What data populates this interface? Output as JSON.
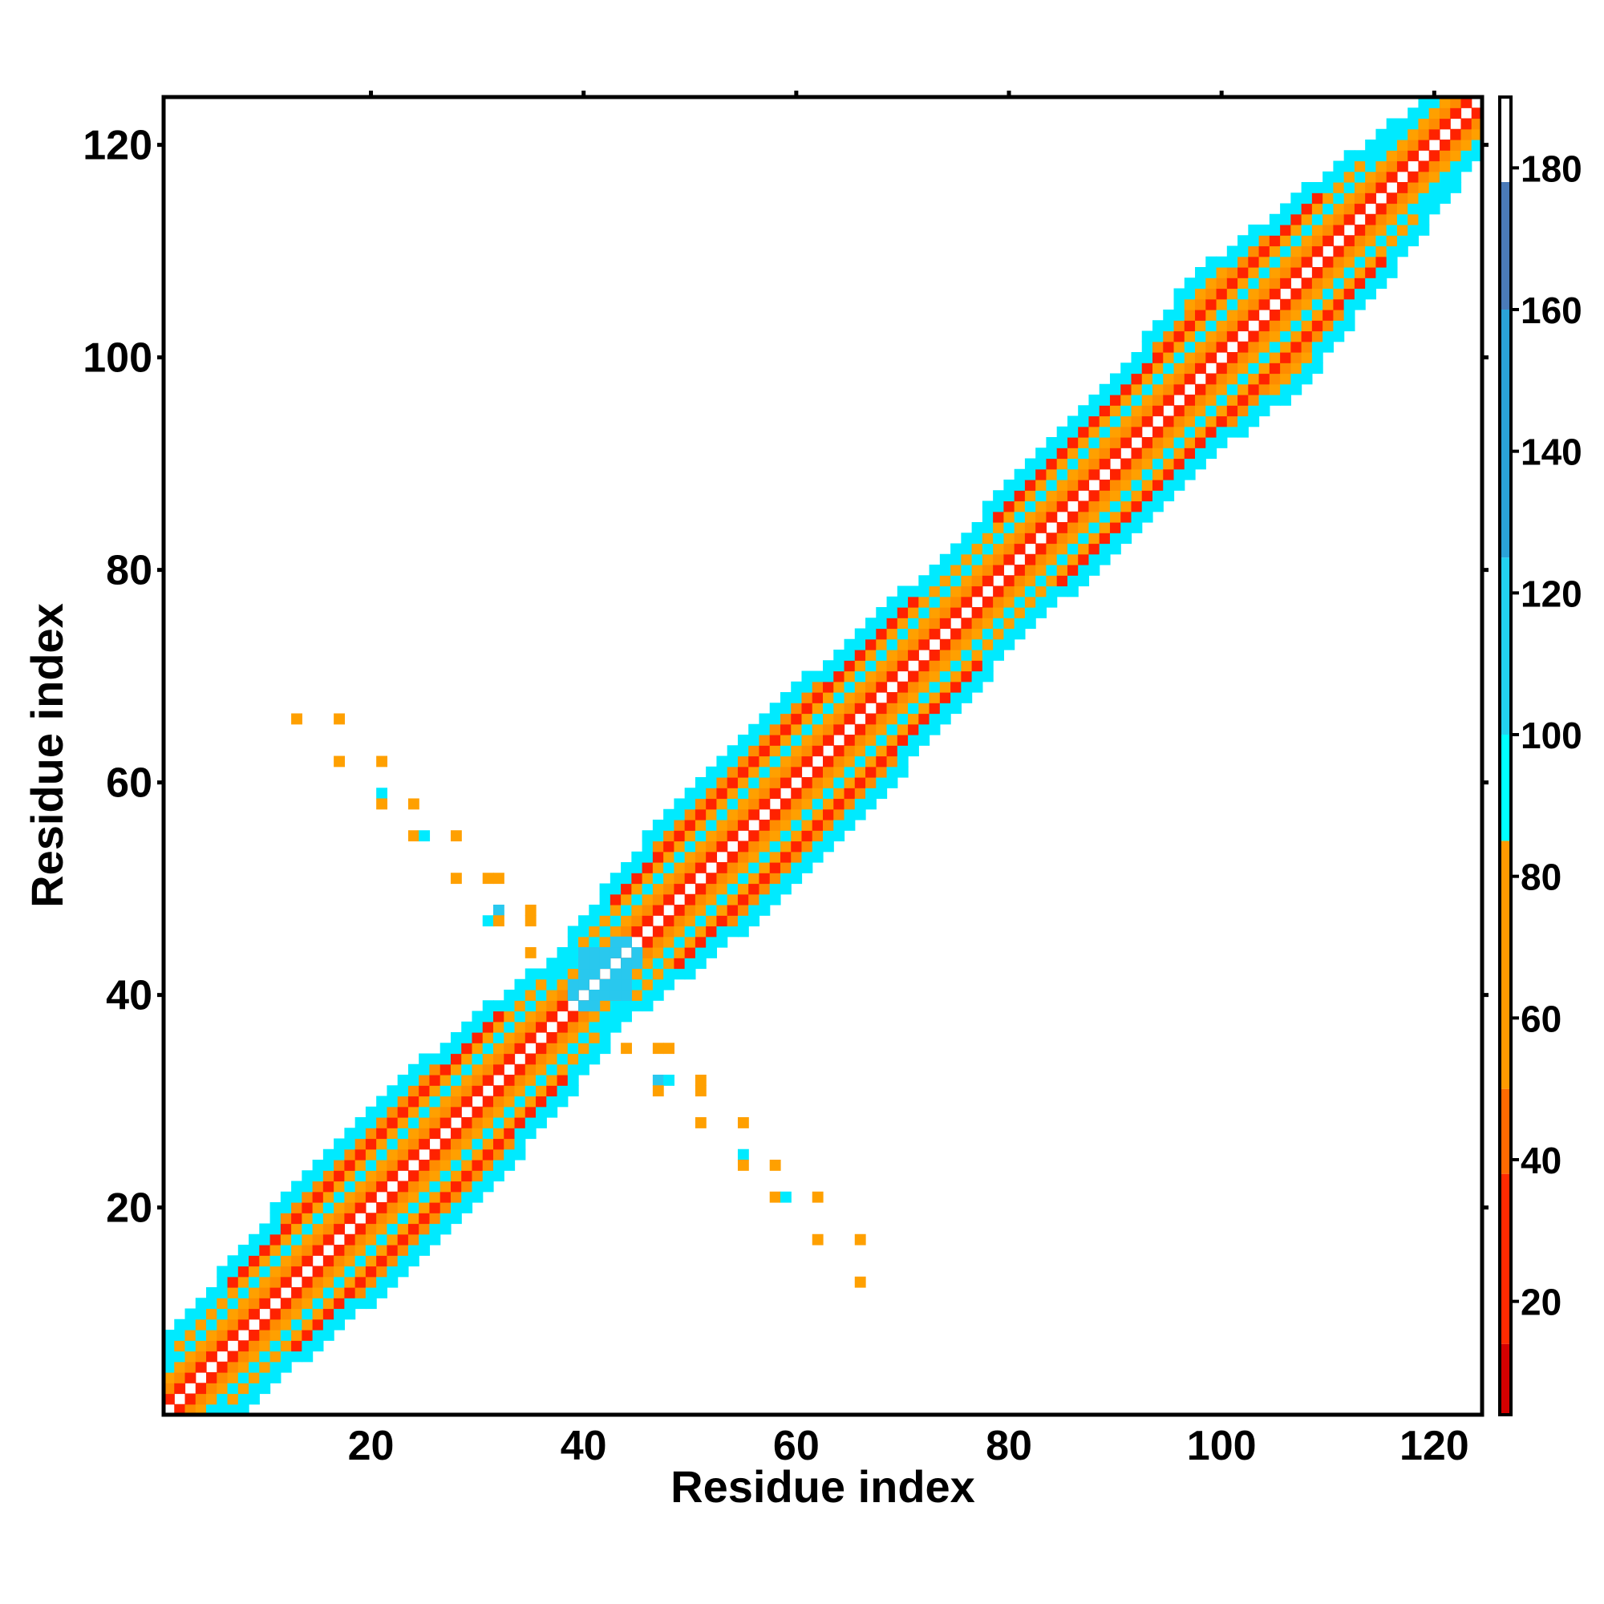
{
  "chart_data": {
    "type": "heatmap",
    "title": "",
    "xlabel": "Residue index",
    "ylabel": "Residue index",
    "xlim": [
      1,
      124
    ],
    "ylim": [
      1,
      124
    ],
    "xticks": [
      20,
      40,
      60,
      80,
      100,
      120
    ],
    "yticks": [
      20,
      40,
      60,
      80,
      100,
      120
    ],
    "colorbar": {
      "range": [
        4,
        190
      ],
      "ticks": [
        20,
        40,
        60,
        80,
        100,
        120,
        140,
        160,
        180
      ],
      "bins": [
        {
          "from": 4,
          "to": 14,
          "color": "#d40000"
        },
        {
          "from": 14,
          "to": 38,
          "color": "#ff2a00"
        },
        {
          "from": 38,
          "to": 50,
          "color": "#ff6a00"
        },
        {
          "from": 50,
          "to": 85,
          "color": "#ff9a00"
        },
        {
          "from": 85,
          "to": 100,
          "color": "#00ffff"
        },
        {
          "from": 100,
          "to": 125,
          "color": "#22d2f0"
        },
        {
          "from": 125,
          "to": 160,
          "color": "#2aa3d8"
        },
        {
          "from": 160,
          "to": 178,
          "color": "#4a7ab8"
        },
        {
          "from": 178,
          "to": 190,
          "color": "#ffffff"
        }
      ]
    },
    "cell_classes": {
      "red": {
        "color": "#ff2200",
        "approx_value": 25
      },
      "orange": {
        "color": "#ff8c00",
        "approx_value": 50
      },
      "amber": {
        "color": "#ffa000",
        "approx_value": 70
      },
      "cyan": {
        "color": "#00eaff",
        "approx_value": 95
      },
      "lightblue": {
        "color": "#29c8ee",
        "approx_value": 115
      }
    },
    "diagonal_band": {
      "from": 1,
      "to": 124,
      "half_width_by_index": [
        [
          1,
          6
        ],
        [
          12,
          8
        ],
        [
          18,
          9
        ],
        [
          26,
          9
        ],
        [
          34,
          8
        ],
        [
          40,
          6
        ],
        [
          44,
          7
        ],
        [
          52,
          9
        ],
        [
          62,
          9
        ],
        [
          70,
          8
        ],
        [
          78,
          7
        ],
        [
          86,
          8
        ],
        [
          96,
          8
        ],
        [
          102,
          10
        ],
        [
          110,
          8
        ],
        [
          118,
          6
        ],
        [
          124,
          4
        ]
      ],
      "stripe_pattern": [
        "red",
        "orange",
        "amber",
        "cyan",
        "white"
      ]
    },
    "cross_contacts": [
      [
        13,
        66,
        "amber"
      ],
      [
        17,
        66,
        "amber"
      ],
      [
        17,
        62,
        "amber"
      ],
      [
        21,
        62,
        "amber"
      ],
      [
        21,
        59,
        "cyan"
      ],
      [
        21,
        58,
        "amber"
      ],
      [
        24,
        58,
        "amber"
      ],
      [
        24,
        55,
        "amber"
      ],
      [
        25,
        55,
        "cyan"
      ],
      [
        28,
        55,
        "amber"
      ],
      [
        28,
        51,
        "amber"
      ],
      [
        31,
        51,
        "amber"
      ],
      [
        32,
        51,
        "amber"
      ],
      [
        31,
        47,
        "cyan"
      ],
      [
        32,
        48,
        "lightblue"
      ],
      [
        32,
        47,
        "amber"
      ],
      [
        35,
        48,
        "amber"
      ],
      [
        35,
        47,
        "amber"
      ],
      [
        35,
        44,
        "amber"
      ],
      [
        44,
        35,
        "amber"
      ],
      [
        47,
        35,
        "amber"
      ],
      [
        48,
        35,
        "amber"
      ],
      [
        47,
        32,
        "lightblue"
      ],
      [
        48,
        32,
        "cyan"
      ],
      [
        47,
        31,
        "amber"
      ],
      [
        51,
        32,
        "amber"
      ],
      [
        51,
        31,
        "amber"
      ],
      [
        51,
        28,
        "amber"
      ],
      [
        55,
        28,
        "amber"
      ],
      [
        55,
        25,
        "cyan"
      ],
      [
        55,
        24,
        "amber"
      ],
      [
        58,
        24,
        "amber"
      ],
      [
        58,
        21,
        "amber"
      ],
      [
        59,
        21,
        "cyan"
      ],
      [
        62,
        21,
        "amber"
      ],
      [
        62,
        17,
        "amber"
      ],
      [
        66,
        17,
        "amber"
      ],
      [
        66,
        13,
        "amber"
      ]
    ],
    "knot_region": {
      "center": [
        42,
        42
      ],
      "radius": 3,
      "color": "lightblue"
    },
    "grid": false,
    "legend": "none"
  }
}
